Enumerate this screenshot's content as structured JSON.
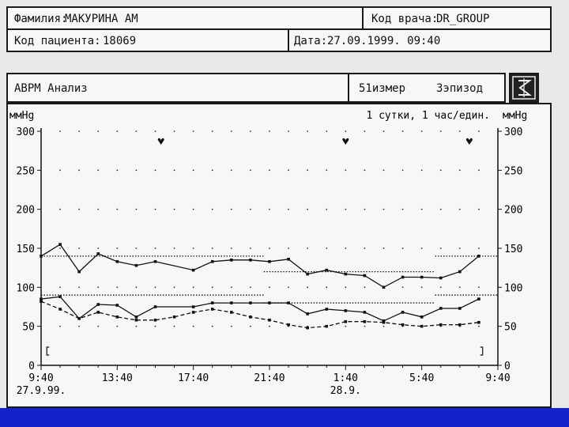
{
  "header": {
    "surname_label": "Фамилия:",
    "surname_value": "МАКУРИНА АМ",
    "doctor_code_label": "Код врача:",
    "doctor_code_value": "DR_GROUP",
    "patient_code_label": "Код пациента:",
    "patient_code_value": "18069",
    "date_label": "Дата:",
    "date_value": "27.09.1999. 09:40"
  },
  "toolbar": {
    "title": "АВРМ Анализ",
    "measurements": "51измер",
    "episodes": "3эпизод",
    "logo_icon": "logo-icon"
  },
  "chart_data": {
    "type": "line",
    "unit_left": "ммHg",
    "unit_right": "ммHg",
    "scale_note": "1 сутки, 1 час/един.",
    "ylim": [
      0,
      300
    ],
    "yticks": [
      0,
      50,
      100,
      150,
      200,
      250,
      300
    ],
    "ytick_labels": [
      "0",
      "50",
      "100",
      "150",
      "200",
      "250",
      "300"
    ],
    "xlim_hours": [
      0,
      24
    ],
    "xtick_labels": [
      "9:40",
      "13:40",
      "17:40",
      "21:40",
      "1:40",
      "5:40",
      "9:40"
    ],
    "xticks_hours": [
      0,
      4,
      8,
      12,
      16,
      20,
      24
    ],
    "date_labels": [
      {
        "text": "27.9.99.",
        "hour": 0
      },
      {
        "text": "28.9.",
        "hour": 16
      }
    ],
    "markers_hours": [
      6.3,
      16,
      22.5
    ],
    "bracket_hours": [
      0.3,
      23.2
    ],
    "series": [
      {
        "id": "systolic",
        "style": "solid",
        "points": [
          [
            0,
            140
          ],
          [
            1,
            155
          ],
          [
            2,
            120
          ],
          [
            3,
            143
          ],
          [
            4,
            133
          ],
          [
            5,
            128
          ],
          [
            6,
            133
          ],
          [
            8,
            122
          ],
          [
            9,
            133
          ],
          [
            10,
            135
          ],
          [
            11,
            135
          ],
          [
            12,
            133
          ],
          [
            13,
            136
          ],
          [
            14,
            117
          ],
          [
            15,
            122
          ],
          [
            16,
            117
          ],
          [
            17,
            115
          ],
          [
            18,
            100
          ],
          [
            19,
            113
          ],
          [
            20,
            113
          ],
          [
            21,
            112
          ],
          [
            22,
            120
          ],
          [
            23,
            140
          ]
        ]
      },
      {
        "id": "diastolic",
        "style": "solid",
        "points": [
          [
            0,
            85
          ],
          [
            1,
            88
          ],
          [
            2,
            60
          ],
          [
            3,
            78
          ],
          [
            4,
            77
          ],
          [
            5,
            62
          ],
          [
            6,
            75
          ],
          [
            8,
            75
          ],
          [
            9,
            80
          ],
          [
            10,
            80
          ],
          [
            11,
            80
          ],
          [
            12,
            80
          ],
          [
            13,
            80
          ],
          [
            14,
            66
          ],
          [
            15,
            72
          ],
          [
            16,
            70
          ],
          [
            17,
            68
          ],
          [
            18,
            57
          ],
          [
            19,
            68
          ],
          [
            20,
            62
          ],
          [
            21,
            73
          ],
          [
            22,
            73
          ],
          [
            23,
            85
          ]
        ]
      },
      {
        "id": "heart_rate",
        "style": "dashed",
        "points": [
          [
            0,
            82
          ],
          [
            1,
            72
          ],
          [
            2,
            60
          ],
          [
            3,
            68
          ],
          [
            4,
            62
          ],
          [
            5,
            58
          ],
          [
            6,
            58
          ],
          [
            7,
            62
          ],
          [
            8,
            68
          ],
          [
            9,
            72
          ],
          [
            10,
            68
          ],
          [
            11,
            62
          ],
          [
            12,
            58
          ],
          [
            13,
            52
          ],
          [
            14,
            48
          ],
          [
            15,
            50
          ],
          [
            16,
            56
          ],
          [
            17,
            56
          ],
          [
            18,
            55
          ],
          [
            19,
            52
          ],
          [
            20,
            50
          ],
          [
            21,
            52
          ],
          [
            22,
            52
          ],
          [
            23,
            55
          ]
        ]
      }
    ],
    "threshold_segments": [
      {
        "from": 0,
        "to": 11.7,
        "value": 140
      },
      {
        "from": 11.7,
        "to": 20.7,
        "value": 120
      },
      {
        "from": 20.7,
        "to": 24,
        "value": 140
      },
      {
        "from": 0,
        "to": 11.7,
        "value": 90
      },
      {
        "from": 11.7,
        "to": 20.7,
        "value": 80
      },
      {
        "from": 20.7,
        "to": 24,
        "value": 90
      }
    ],
    "grid": "dotted"
  }
}
